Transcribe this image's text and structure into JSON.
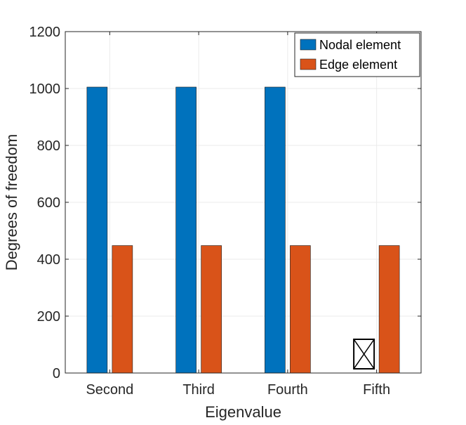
{
  "chart_data": {
    "type": "bar",
    "title": "",
    "xlabel": "Eigenvalue",
    "ylabel": "Degrees of freedom",
    "categories": [
      "Second",
      "Third",
      "Fourth",
      "Fifth"
    ],
    "series": [
      {
        "name": "Nodal element",
        "color": "#0072BD",
        "values": [
          1005,
          1005,
          1005,
          null
        ]
      },
      {
        "name": "Edge element",
        "color": "#D95319",
        "values": [
          448,
          448,
          448,
          448
        ]
      }
    ],
    "missing_marker": {
      "category": "Fifth",
      "series": "Nodal element",
      "symbol": "boxed-x"
    },
    "ylim": [
      0,
      1200
    ],
    "yticks": [
      0,
      200,
      400,
      600,
      800,
      1000,
      1200
    ],
    "grid": true,
    "legend_position": "top-right"
  }
}
